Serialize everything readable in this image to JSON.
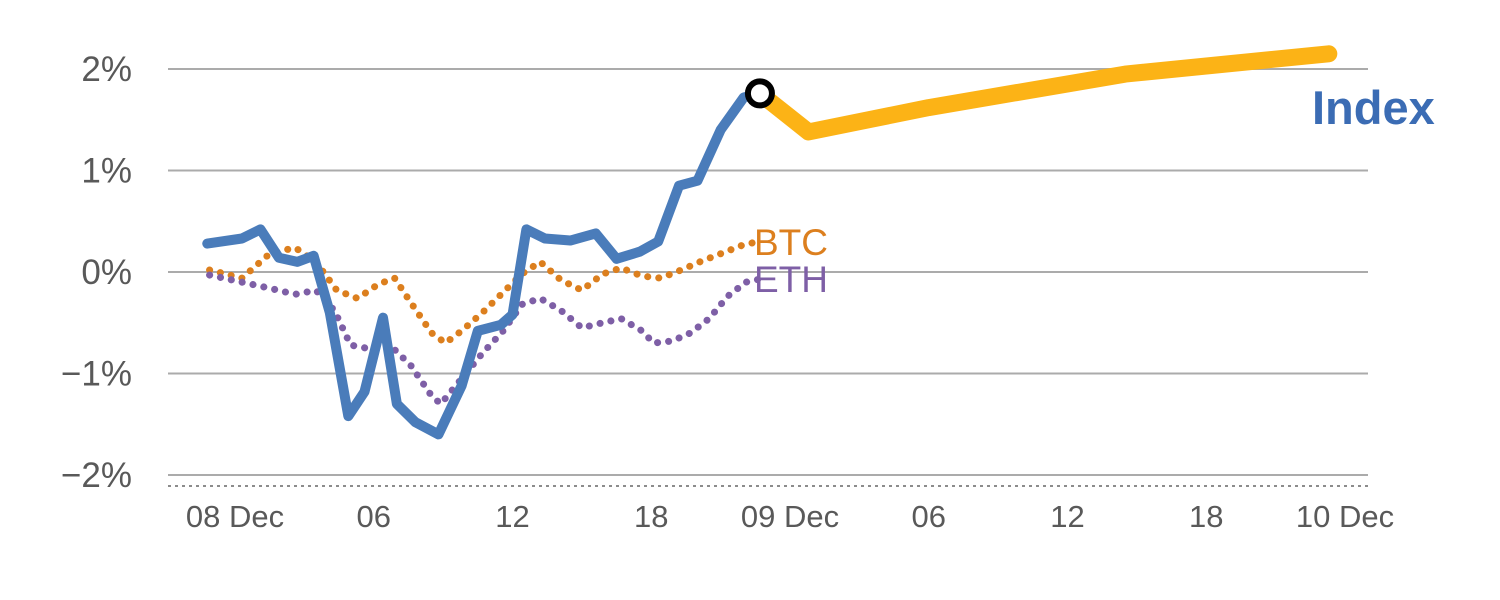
{
  "chart_data": {
    "type": "line",
    "title": "",
    "x_axis": {
      "unit": "hours from 08 Dec 00:00",
      "range": [
        -2,
        49.5
      ],
      "ticks": [
        0,
        6,
        12,
        18,
        24,
        30,
        36,
        42,
        48
      ],
      "tick_labels": [
        "08 Dec",
        "06",
        "12",
        "18",
        "09 Dec",
        "06",
        "12",
        "18",
        "10 Dec"
      ]
    },
    "y_axis": {
      "unit": "percent change",
      "range": [
        -2.3,
        2.3
      ],
      "ticks": [
        2,
        1,
        0,
        -1,
        -2
      ],
      "tick_labels": [
        "2%",
        "1%",
        "0%",
        "−1%",
        "−2%"
      ],
      "grid": true
    },
    "legend_position": "inline-annotations",
    "series": [
      {
        "id": "btc",
        "name": "BTC",
        "color": "#dc7f1e",
        "style": "dotted",
        "width": 7,
        "points": [
          [
            -1.1,
            0.02
          ],
          [
            0.3,
            -0.06
          ],
          [
            1.5,
            0.18
          ],
          [
            2.6,
            0.24
          ],
          [
            3.5,
            0.1
          ],
          [
            4.4,
            -0.18
          ],
          [
            5.3,
            -0.26
          ],
          [
            6.2,
            -0.12
          ],
          [
            6.9,
            -0.06
          ],
          [
            7.6,
            -0.3
          ],
          [
            8.5,
            -0.6
          ],
          [
            9.1,
            -0.7
          ],
          [
            9.8,
            -0.58
          ],
          [
            10.7,
            -0.4
          ],
          [
            11.6,
            -0.2
          ],
          [
            12.4,
            -0.02
          ],
          [
            13.2,
            0.1
          ],
          [
            14.1,
            -0.08
          ],
          [
            15.0,
            -0.18
          ],
          [
            15.9,
            -0.02
          ],
          [
            16.7,
            0.04
          ],
          [
            17.6,
            -0.04
          ],
          [
            18.4,
            -0.06
          ],
          [
            19.3,
            0.02
          ],
          [
            20.1,
            0.1
          ],
          [
            21.0,
            0.18
          ],
          [
            21.9,
            0.26
          ],
          [
            22.6,
            0.3
          ]
        ]
      },
      {
        "id": "eth",
        "name": "ETH",
        "color": "#7e5fa6",
        "style": "dotted",
        "width": 7,
        "points": [
          [
            -1.1,
            -0.03
          ],
          [
            0.3,
            -0.1
          ],
          [
            1.5,
            -0.16
          ],
          [
            2.6,
            -0.22
          ],
          [
            3.5,
            -0.18
          ],
          [
            4.3,
            -0.38
          ],
          [
            5.0,
            -0.72
          ],
          [
            5.9,
            -0.76
          ],
          [
            6.7,
            -0.72
          ],
          [
            7.6,
            -0.92
          ],
          [
            8.5,
            -1.22
          ],
          [
            8.9,
            -1.3
          ],
          [
            9.8,
            -1.05
          ],
          [
            10.7,
            -0.8
          ],
          [
            11.6,
            -0.58
          ],
          [
            12.4,
            -0.32
          ],
          [
            13.2,
            -0.26
          ],
          [
            14.1,
            -0.38
          ],
          [
            15.0,
            -0.55
          ],
          [
            15.9,
            -0.5
          ],
          [
            16.7,
            -0.46
          ],
          [
            17.6,
            -0.58
          ],
          [
            18.1,
            -0.7
          ],
          [
            18.9,
            -0.68
          ],
          [
            19.7,
            -0.6
          ],
          [
            20.5,
            -0.46
          ],
          [
            21.3,
            -0.24
          ],
          [
            22.1,
            -0.1
          ],
          [
            22.7,
            -0.07
          ]
        ]
      },
      {
        "id": "index",
        "name": "Index (history)",
        "color": "#4a7cba",
        "style": "solid",
        "width": 10,
        "points": [
          [
            -1.2,
            0.28
          ],
          [
            0.3,
            0.33
          ],
          [
            1.1,
            0.42
          ],
          [
            1.9,
            0.14
          ],
          [
            2.7,
            0.1
          ],
          [
            3.4,
            0.16
          ],
          [
            4.1,
            -0.4
          ],
          [
            4.9,
            -1.42
          ],
          [
            5.6,
            -1.18
          ],
          [
            6.4,
            -0.45
          ],
          [
            7.0,
            -1.3
          ],
          [
            7.8,
            -1.48
          ],
          [
            8.8,
            -1.6
          ],
          [
            9.8,
            -1.12
          ],
          [
            10.5,
            -0.58
          ],
          [
            11.5,
            -0.52
          ],
          [
            12.0,
            -0.42
          ],
          [
            12.6,
            0.42
          ],
          [
            13.4,
            0.33
          ],
          [
            14.5,
            0.31
          ],
          [
            15.6,
            0.38
          ],
          [
            16.5,
            0.13
          ],
          [
            17.5,
            0.2
          ],
          [
            18.3,
            0.3
          ],
          [
            19.2,
            0.85
          ],
          [
            20.0,
            0.9
          ],
          [
            21.0,
            1.4
          ],
          [
            22.0,
            1.72
          ],
          [
            22.7,
            1.76
          ]
        ]
      },
      {
        "id": "index_forward",
        "name": "Index (forward)",
        "color": "#fcb316",
        "style": "solid",
        "width": 17,
        "points": [
          [
            22.7,
            1.76
          ],
          [
            24.8,
            1.38
          ],
          [
            30.0,
            1.62
          ],
          [
            38.5,
            1.95
          ],
          [
            47.3,
            2.15
          ]
        ]
      }
    ],
    "marker": {
      "series": "Index",
      "x": 22.7,
      "y": 1.76,
      "shape": "open-circle",
      "stroke": "#000000",
      "fill": "#ffffff"
    },
    "annotations": {
      "index": {
        "text": "Index",
        "color": "#3b6cb4"
      },
      "btc": {
        "text": "BTC",
        "color": "#dc7f1e"
      },
      "eth": {
        "text": "ETH",
        "color": "#7e5fa6"
      }
    }
  }
}
